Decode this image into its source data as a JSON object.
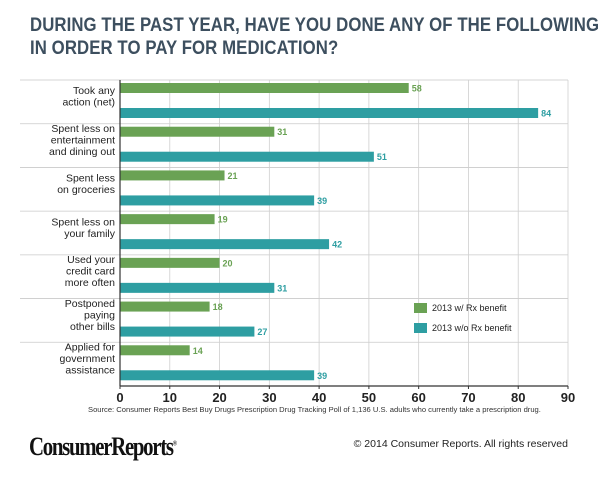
{
  "title_line1": "DURING THE PAST YEAR, HAVE YOU DONE ANY OF THE FOLLOWING",
  "title_line2": "IN ORDER TO PAY FOR MEDICATION?",
  "source": "Source: Consumer Reports Best Buy Drugs Prescription Drug Tracking Poll of 1,136 U.S. adults who currently take a prescription drug.",
  "logo": "ConsumerReports",
  "copyright": "© 2014 Consumer Reports. All rights reserved",
  "chart_data": {
    "type": "bar",
    "orientation": "horizontal",
    "title": "DURING THE PAST YEAR, HAVE YOU DONE ANY OF THE FOLLOWING IN ORDER TO PAY FOR MEDICATION?",
    "categories": [
      [
        "Took any",
        "action (net)"
      ],
      [
        "Spent less on",
        "entertainment",
        "and dining out"
      ],
      [
        "Spent less",
        "on groceries"
      ],
      [
        "Spent less on",
        "your family"
      ],
      [
        "Used your",
        "credit card",
        "more often"
      ],
      [
        "Postponed",
        "paying",
        "other bills"
      ],
      [
        "Applied for",
        "government",
        "assistance"
      ]
    ],
    "series": [
      {
        "name": "2013 w/ Rx benefit",
        "color": "#6aa254",
        "values": [
          58,
          31,
          21,
          19,
          20,
          18,
          14
        ]
      },
      {
        "name": "2013 w/o Rx benefit",
        "color": "#2e9ea2",
        "values": [
          84,
          51,
          39,
          42,
          31,
          27,
          39
        ]
      }
    ],
    "xlim": [
      0,
      90
    ],
    "xticks": [
      "0",
      "10",
      "20",
      "30",
      "40",
      "50",
      "60",
      "70",
      "80",
      "90"
    ],
    "legend_position": "bottom-right",
    "grid": true
  }
}
